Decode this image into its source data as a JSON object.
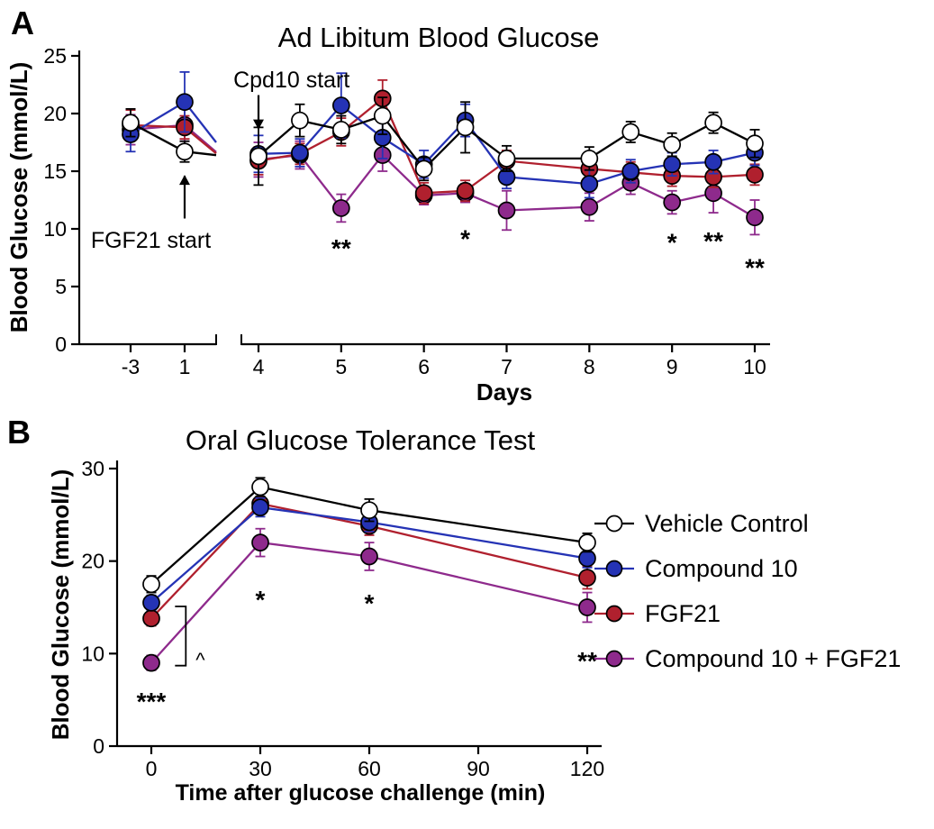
{
  "figure": {
    "background": "#ffffff"
  },
  "panels": [
    {
      "label": "A"
    },
    {
      "label": "B"
    }
  ],
  "chart_data": [
    {
      "type": "line",
      "panel": "A",
      "title": "Ad Libitum Blood Glucose",
      "xlabel": "Days",
      "ylabel": "Blood Glucose (mmol/L)",
      "ylim": [
        0,
        25
      ],
      "yticks": [
        0,
        5,
        10,
        15,
        20,
        25
      ],
      "x_axis": {
        "broken": true,
        "xticks_left": [
          -3,
          1
        ],
        "xticks_right": [
          4,
          5,
          6,
          7,
          8,
          9,
          10
        ]
      },
      "x": [
        -3,
        1,
        4,
        4.5,
        5,
        5.5,
        6,
        6.5,
        7,
        8,
        8.5,
        9,
        9.5,
        10
      ],
      "series": [
        {
          "name": "Vehicle Control",
          "color": "#000000",
          "marker_fill": "#ffffff",
          "y": [
            19.2,
            16.7,
            16.3,
            19.4,
            18.6,
            19.8,
            15.2,
            18.8,
            16.1,
            16.1,
            18.4,
            17.3,
            19.2,
            17.4
          ],
          "err": [
            1.2,
            0.9,
            2.5,
            1.4,
            1.2,
            1.6,
            1.0,
            2.2,
            1.1,
            1.0,
            0.9,
            1.0,
            0.9,
            1.2
          ]
        },
        {
          "name": "Compound 10",
          "color": "#2533b5",
          "marker_fill": "#2533b5",
          "y": [
            18.2,
            21.0,
            16.5,
            16.6,
            20.7,
            17.9,
            15.6,
            19.4,
            14.5,
            13.9,
            15.0,
            15.6,
            15.8,
            16.6
          ],
          "err": [
            1.5,
            2.6,
            1.6,
            1.2,
            2.8,
            1.8,
            1.2,
            1.4,
            1.0,
            1.2,
            1.0,
            1.0,
            1.0,
            1.1
          ]
        },
        {
          "name": "FGF21",
          "color": "#b0202e",
          "marker_fill": "#b0202e",
          "y": [
            19.0,
            18.8,
            15.9,
            16.5,
            18.4,
            21.3,
            13.1,
            13.3,
            15.9,
            15.2,
            14.9,
            14.6,
            14.5,
            14.7
          ],
          "err": [
            1.3,
            1.0,
            1.2,
            0.9,
            1.2,
            1.6,
            0.9,
            0.9,
            0.9,
            0.9,
            0.9,
            0.9,
            0.9,
            0.9
          ]
        },
        {
          "name": "Compound 10 + FGF21",
          "color": "#8e2a8c",
          "marker_fill": "#8e2a8c",
          "y": [
            18.6,
            19.0,
            16.0,
            16.4,
            11.8,
            16.4,
            12.9,
            13.1,
            11.6,
            11.9,
            14.0,
            12.3,
            13.1,
            11.0
          ],
          "err": [
            1.3,
            1.4,
            1.5,
            1.2,
            1.2,
            1.4,
            0.8,
            0.8,
            1.7,
            1.2,
            1.0,
            1.0,
            1.7,
            1.5
          ]
        }
      ],
      "annotations": [
        {
          "type": "arrow-label",
          "text": "Cpd10 start",
          "x": 4,
          "y_from": 21.6,
          "y_to": 18.7,
          "text_x": 4.4,
          "text_y": 22.9
        },
        {
          "type": "arrow-label",
          "text": "FGF21 start",
          "x": 1,
          "y_from": 10.9,
          "y_to": 14.6,
          "text_x": -1.5,
          "text_y": 9.0
        },
        {
          "type": "stars",
          "text": "**",
          "x": 5,
          "y": 8.8,
          "color": "#7b1f86"
        },
        {
          "type": "stars",
          "text": "*",
          "x": 6.5,
          "y": 9.6,
          "color": "#7b1f86"
        },
        {
          "type": "stars",
          "text": "*",
          "x": 9,
          "y": 9.3,
          "color": "#7b1f86"
        },
        {
          "type": "stars",
          "text": "**",
          "x": 9.5,
          "y": 9.4,
          "color": "#7b1f86"
        },
        {
          "type": "stars",
          "text": "**",
          "x": 10,
          "y": 7.1,
          "color": "#7b1f86"
        }
      ]
    },
    {
      "type": "line",
      "panel": "B",
      "title": "Oral Glucose Tolerance Test",
      "xlabel": "Time after glucose challenge (min)",
      "ylabel": "Blood Glucose (mmol/L)",
      "ylim": [
        0,
        30
      ],
      "yticks": [
        0,
        10,
        20,
        30
      ],
      "xticks": [
        0,
        30,
        60,
        90,
        120
      ],
      "x": [
        0,
        30,
        60,
        120
      ],
      "series": [
        {
          "name": "Vehicle Control",
          "color": "#000000",
          "marker_fill": "#ffffff",
          "y": [
            17.5,
            28.0,
            25.5,
            22.0
          ],
          "err": [
            0.9,
            1.0,
            1.2,
            1.0
          ]
        },
        {
          "name": "Compound 10",
          "color": "#2533b5",
          "marker_fill": "#2533b5",
          "y": [
            15.5,
            25.8,
            24.2,
            20.3
          ],
          "err": [
            0.8,
            1.0,
            1.0,
            1.0
          ]
        },
        {
          "name": "FGF21",
          "color": "#b0202e",
          "marker_fill": "#b0202e",
          "y": [
            13.8,
            26.2,
            23.8,
            18.2
          ],
          "err": [
            0.8,
            1.1,
            1.0,
            1.2
          ]
        },
        {
          "name": "Compound 10 + FGF21",
          "color": "#8e2a8c",
          "marker_fill": "#8e2a8c",
          "y": [
            9.0,
            22.0,
            20.5,
            15.0
          ],
          "err": [
            0.8,
            1.5,
            1.5,
            1.6
          ]
        }
      ],
      "legend": {
        "position": "right",
        "labels": [
          "Vehicle Control",
          "Compound 10",
          "FGF21",
          "Compound 10 + FGF21"
        ]
      },
      "annotations": [
        {
          "type": "stars",
          "text": "***",
          "x": 0,
          "y": 5.4,
          "color": "#7b1f86"
        },
        {
          "type": "stars",
          "text": "*",
          "x": 30,
          "y": 16.4,
          "color": "#7b1f86"
        },
        {
          "type": "stars",
          "text": "*",
          "x": 60,
          "y": 16.0,
          "color": "#7b1f86"
        },
        {
          "type": "stars",
          "text": "**",
          "x": 120,
          "y": 9.8,
          "color": "#7b1f86"
        },
        {
          "type": "text",
          "text": "^",
          "x": 13.5,
          "y": 9.3,
          "color": "#000000"
        },
        {
          "type": "bracket",
          "x": 9.5,
          "y_top": 15.1,
          "y_bottom": 8.7
        }
      ]
    }
  ]
}
